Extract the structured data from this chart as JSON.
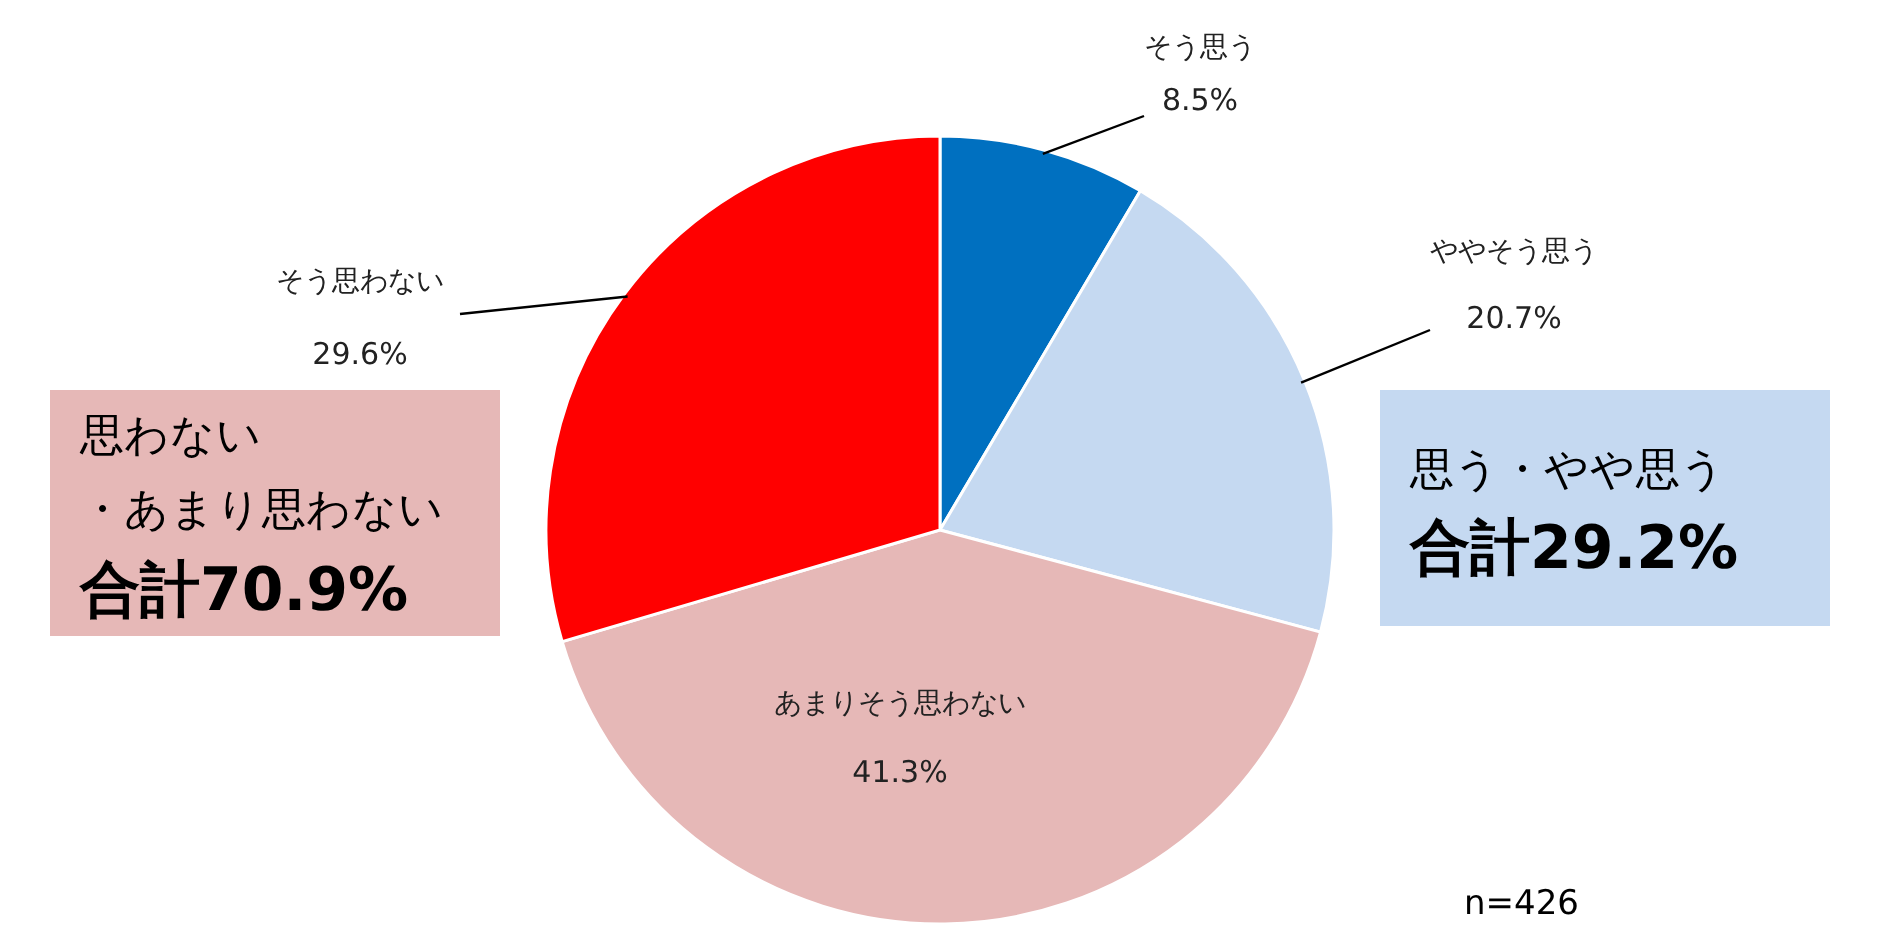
{
  "chart_data": {
    "type": "pie",
    "categories": [
      "そう思う",
      "ややそう思う",
      "あまりそう思わない",
      "そう思わない"
    ],
    "values": [
      8.5,
      20.7,
      41.3,
      29.6
    ],
    "value_labels": [
      "8.5%",
      "20.7%",
      "41.3%",
      "29.6%"
    ],
    "colors": [
      "#0070c0",
      "#c5d9f1",
      "#e6b8b7",
      "#ff0000"
    ],
    "annotations": [
      "思わない",
      "・あまり思わない",
      "合計70.9%",
      "思う・やや思う",
      "合計29.2%",
      "n=426"
    ]
  }
}
